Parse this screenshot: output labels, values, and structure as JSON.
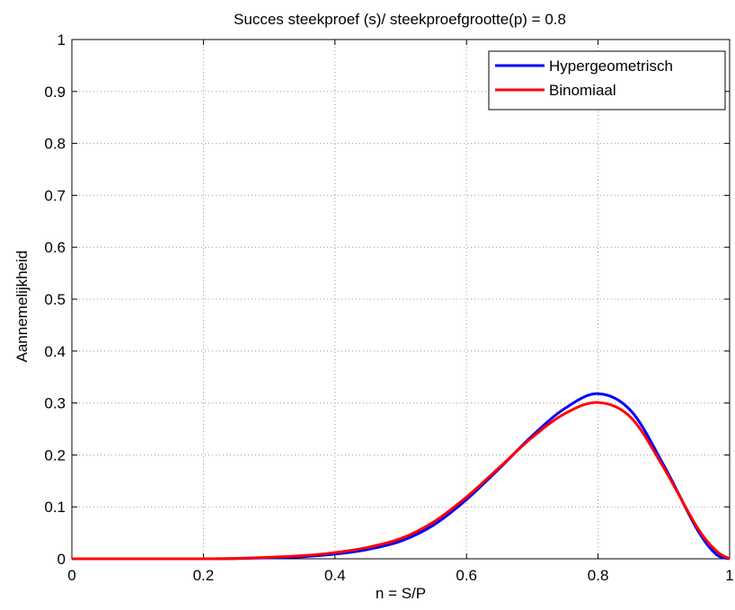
{
  "chart_data": {
    "type": "line",
    "title": "Succes steekproef (s)/ steekproefgrootte(p) = 0.8",
    "xlabel": "n = S/P",
    "ylabel": "Aannemelijkheid",
    "xlim": [
      0,
      1
    ],
    "ylim": [
      0,
      1
    ],
    "xticks": [
      "0",
      "0.2",
      "0.4",
      "0.6",
      "0.8",
      "1"
    ],
    "yticks": [
      "0",
      "0.1",
      "0.2",
      "0.3",
      "0.4",
      "0.5",
      "0.6",
      "0.7",
      "0.8",
      "0.9",
      "1"
    ],
    "grid": true,
    "legend_position": "top-right",
    "series": [
      {
        "name": "Hypergeometrisch",
        "color": "#0000ff",
        "x": [
          0,
          0.1,
          0.2,
          0.25,
          0.3,
          0.35,
          0.4,
          0.45,
          0.5,
          0.55,
          0.6,
          0.65,
          0.7,
          0.75,
          0.8,
          0.85,
          0.9,
          0.95,
          0.98,
          1.0
        ],
        "y": [
          0,
          0,
          0,
          0.0005,
          0.002,
          0.004,
          0.009,
          0.018,
          0.034,
          0.065,
          0.114,
          0.174,
          0.237,
          0.29,
          0.318,
          0.285,
          0.18,
          0.058,
          0.008,
          0
        ]
      },
      {
        "name": "Binomiaal",
        "color": "#ff0000",
        "x": [
          0,
          0.1,
          0.2,
          0.25,
          0.3,
          0.35,
          0.4,
          0.45,
          0.5,
          0.55,
          0.6,
          0.65,
          0.7,
          0.75,
          0.8,
          0.85,
          0.9,
          0.95,
          0.98,
          1.0
        ],
        "y": [
          0,
          0,
          0.0001,
          0.0008,
          0.003,
          0.006,
          0.012,
          0.022,
          0.039,
          0.071,
          0.119,
          0.176,
          0.234,
          0.28,
          0.301,
          0.272,
          0.175,
          0.062,
          0.015,
          0
        ]
      }
    ]
  }
}
